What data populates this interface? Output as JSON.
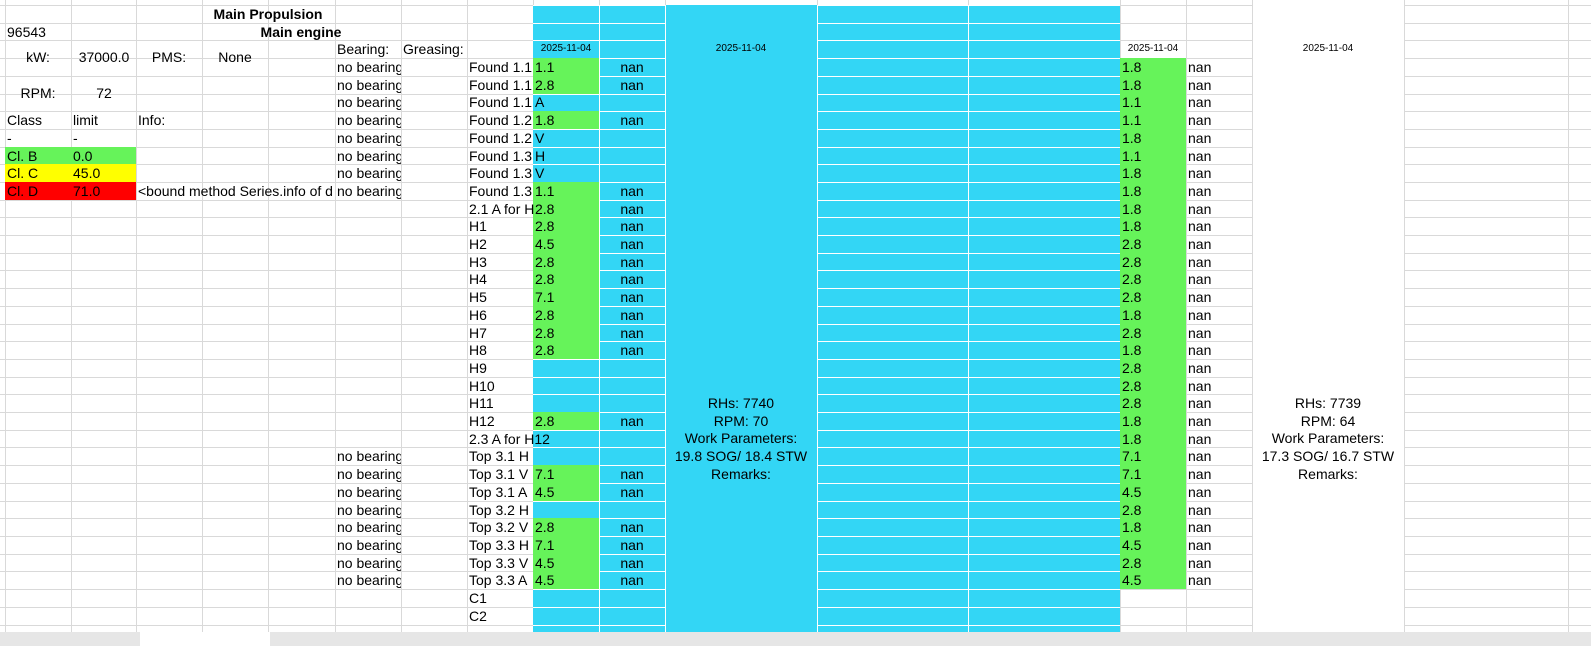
{
  "sheet": {
    "title_propulsion": "Main Propulsion",
    "vessel_id": "96543",
    "title_engine": "Main engine",
    "kw_label": "kW:",
    "kw_value": "37000.0",
    "pms_label": "PMS:",
    "pms_value": "None",
    "rpm_label": "RPM:",
    "rpm_value": "72",
    "bearing_label": "Bearing:",
    "greasing_label": "Greasing:",
    "dates": [
      "2025-11-04",
      "2025-11-04",
      "2025-11-04",
      "2025-11-04"
    ],
    "class_header": [
      "Class",
      "limit",
      "Info:"
    ],
    "classes": [
      {
        "name": "-",
        "limit": "-",
        "color": "none"
      },
      {
        "name": "Cl. B",
        "limit": "0.0",
        "color": "#66f35a"
      },
      {
        "name": "Cl. C",
        "limit": "45.0",
        "color": "#ffff00"
      },
      {
        "name": "Cl. D",
        "limit": "71.0",
        "color": "#ff0000"
      }
    ],
    "info_text": "<bound method Series.info of d",
    "rows": [
      {
        "bearing": "no bearing",
        "point": "Found 1.1",
        "v1": "1.1",
        "n1": "nan",
        "v2": "1.8",
        "n2": "nan"
      },
      {
        "bearing": "no bearing",
        "point": "Found 1.1",
        "v1": "2.8",
        "n1": "nan",
        "v2": "1.8",
        "n2": "nan"
      },
      {
        "bearing": "no bearing",
        "point": "Found 1.1",
        "v1": "A",
        "n1": "",
        "v2": "1.1",
        "n2": "nan"
      },
      {
        "bearing": "no bearing",
        "point": "Found 1.2",
        "v1": "1.8",
        "n1": "nan",
        "v2": "1.1",
        "n2": "nan"
      },
      {
        "bearing": "no bearing",
        "point": "Found 1.2",
        "v1": "V",
        "n1": "",
        "v2": "1.8",
        "n2": "nan"
      },
      {
        "bearing": "no bearing",
        "point": "Found 1.3",
        "v1": "H",
        "n1": "",
        "v2": "1.1",
        "n2": "nan"
      },
      {
        "bearing": "no bearing",
        "point": "Found 1.3",
        "v1": "V",
        "n1": "",
        "v2": "1.8",
        "n2": "nan"
      },
      {
        "bearing": "no bearing",
        "point": "Found 1.3",
        "v1": "1.1",
        "n1": "nan",
        "v2": "1.8",
        "n2": "nan"
      },
      {
        "bearing": "",
        "point": "2.1 A for H",
        "v1": "2.8",
        "n1": "nan",
        "v2": "1.8",
        "n2": "nan"
      },
      {
        "bearing": "",
        "point": "H1",
        "v1": "2.8",
        "n1": "nan",
        "v2": "1.8",
        "n2": "nan"
      },
      {
        "bearing": "",
        "point": "H2",
        "v1": "4.5",
        "n1": "nan",
        "v2": "2.8",
        "n2": "nan"
      },
      {
        "bearing": "",
        "point": "H3",
        "v1": "2.8",
        "n1": "nan",
        "v2": "2.8",
        "n2": "nan"
      },
      {
        "bearing": "",
        "point": "H4",
        "v1": "2.8",
        "n1": "nan",
        "v2": "2.8",
        "n2": "nan"
      },
      {
        "bearing": "",
        "point": "H5",
        "v1": "7.1",
        "n1": "nan",
        "v2": "2.8",
        "n2": "nan"
      },
      {
        "bearing": "",
        "point": "H6",
        "v1": "2.8",
        "n1": "nan",
        "v2": "1.8",
        "n2": "nan"
      },
      {
        "bearing": "",
        "point": "H7",
        "v1": "2.8",
        "n1": "nan",
        "v2": "2.8",
        "n2": "nan"
      },
      {
        "bearing": "",
        "point": "H8",
        "v1": "2.8",
        "n1": "nan",
        "v2": "1.8",
        "n2": "nan"
      },
      {
        "bearing": "",
        "point": "H9",
        "v1": "",
        "n1": "",
        "v2": "2.8",
        "n2": "nan"
      },
      {
        "bearing": "",
        "point": "H10",
        "v1": "",
        "n1": "",
        "v2": "2.8",
        "n2": "nan"
      },
      {
        "bearing": "",
        "point": "H11",
        "v1": "",
        "n1": "",
        "v2": "2.8",
        "n2": "nan"
      },
      {
        "bearing": "",
        "point": "H12",
        "v1": "2.8",
        "n1": "nan",
        "v2": "1.8",
        "n2": "nan"
      },
      {
        "bearing": "",
        "point": "2.3 A for H12",
        "v1": "",
        "n1": "",
        "v2": "1.8",
        "n2": "nan"
      },
      {
        "bearing": "no bearing",
        "point": "Top 3.1 H",
        "v1": "",
        "n1": "",
        "v2": "7.1",
        "n2": "nan"
      },
      {
        "bearing": "no bearing",
        "point": "Top 3.1 V",
        "v1": "7.1",
        "n1": "nan",
        "v2": "7.1",
        "n2": "nan"
      },
      {
        "bearing": "no bearing",
        "point": "Top 3.1 A",
        "v1": "4.5",
        "n1": "nan",
        "v2": "4.5",
        "n2": "nan"
      },
      {
        "bearing": "no bearing",
        "point": "Top 3.2 H",
        "v1": "",
        "n1": "",
        "v2": "2.8",
        "n2": "nan"
      },
      {
        "bearing": "no bearing",
        "point": "Top 3.2 V",
        "v1": "2.8",
        "n1": "nan",
        "v2": "1.8",
        "n2": "nan"
      },
      {
        "bearing": "no bearing",
        "point": "Top 3.3 H",
        "v1": "7.1",
        "n1": "nan",
        "v2": "4.5",
        "n2": "nan"
      },
      {
        "bearing": "no bearing",
        "point": "Top 3.3 V",
        "v1": "4.5",
        "n1": "nan",
        "v2": "2.8",
        "n2": "nan"
      },
      {
        "bearing": "no bearing",
        "point": "Top 3.3 A",
        "v1": "4.5",
        "n1": "nan",
        "v2": "4.5",
        "n2": "nan"
      },
      {
        "bearing": "",
        "point": "C1",
        "v1": "",
        "n1": "",
        "v2": "",
        "n2": ""
      },
      {
        "bearing": "",
        "point": "C2",
        "v1": "",
        "n1": "",
        "v2": "",
        "n2": ""
      }
    ],
    "block1": [
      "RHs: 7740",
      "RPM: 70",
      "Work Parameters:",
      "19.8 SOG/ 18.4 STW",
      "Remarks:"
    ],
    "block2": [
      "RHs: 7739",
      "RPM: 64",
      "Work Parameters:",
      "17.3 SOG/ 16.7 STW",
      "Remarks:"
    ]
  },
  "colors": {
    "blue": "#33d6f5",
    "green": "#66f35a",
    "yellow": "#ffff00",
    "red": "#ff0000",
    "grid": "#d9d9d9"
  }
}
